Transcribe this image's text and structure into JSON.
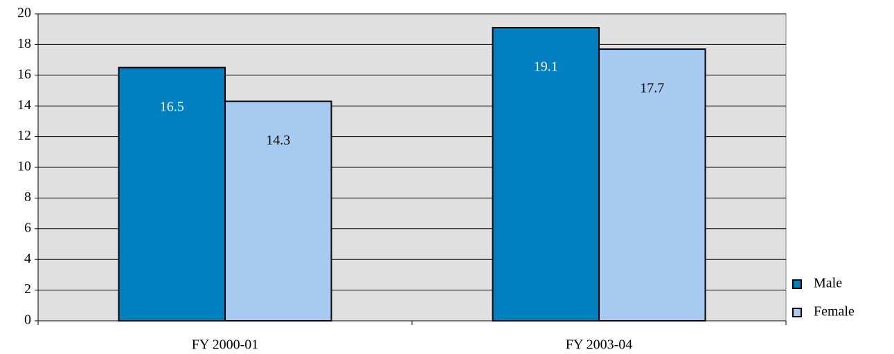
{
  "chart_data": {
    "type": "bar",
    "categories": [
      "FY 2000-01",
      "FY 2003-04"
    ],
    "series": [
      {
        "name": "Male",
        "color": "#0080c0",
        "values": [
          16.5,
          19.1
        ]
      },
      {
        "name": "Female",
        "color": "#a6caf0",
        "values": [
          14.3,
          17.7
        ]
      }
    ],
    "ylim": [
      0,
      20
    ],
    "yticks": [
      0,
      2,
      4,
      6,
      8,
      10,
      12,
      14,
      16,
      18,
      20
    ],
    "grid": true,
    "legend": "bottom-right"
  }
}
